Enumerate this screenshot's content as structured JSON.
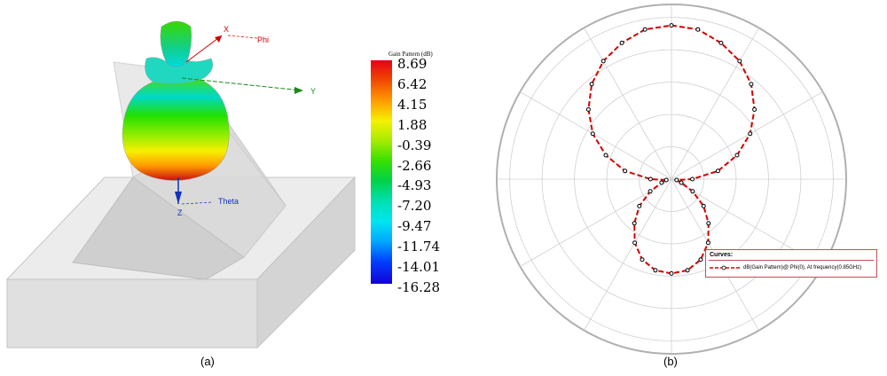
{
  "captions": {
    "left": "(a)",
    "right": "(b)"
  },
  "axes3d": {
    "x": "X",
    "phi": "Phi",
    "y": "Y",
    "z": "Z",
    "theta": "Theta"
  },
  "colorbar": {
    "title": "Gain Pattern (dB)",
    "labels": [
      "8.69",
      "6.42",
      "4.15",
      "1.88",
      "-0.39",
      "-2.66",
      "-4.93",
      "-7.20",
      "-9.47",
      "-11.74",
      "-14.01",
      "-16.28"
    ],
    "range": [
      -16.28,
      8.69
    ]
  },
  "legend": {
    "title": "Curves:",
    "entry": "dB(Gain Pattern)@ Phi(0), At frequency(0.85GHz)"
  },
  "colors": {
    "curve": "#d40000",
    "axis_x": "#d40000",
    "axis_y": "#1a8a1a",
    "axis_z": "#1030c0",
    "grid": "#d0d0d0",
    "outer_ring": "#b0b0b0",
    "legend_border": "#c0504d"
  },
  "chart_data": {
    "type": "polar",
    "series": [
      {
        "name": "dB(Gain Pattern)@ Phi(0), At frequency(0.85GHz)",
        "theta_deg": [
          0,
          10,
          20,
          30,
          40,
          50,
          60,
          70,
          80,
          90,
          100,
          110,
          120,
          130,
          140,
          150,
          160,
          170,
          180,
          190,
          200,
          210,
          220,
          230,
          240,
          250,
          260,
          270,
          280,
          290,
          300,
          310,
          320,
          330,
          340,
          350
        ],
        "r_norm": [
          0.88,
          0.87,
          0.83,
          0.78,
          0.71,
          0.62,
          0.52,
          0.4,
          0.27,
          0.12,
          0.03,
          0.06,
          0.14,
          0.24,
          0.33,
          0.42,
          0.49,
          0.53,
          0.54,
          0.53,
          0.49,
          0.42,
          0.33,
          0.24,
          0.14,
          0.06,
          0.03,
          0.12,
          0.27,
          0.4,
          0.52,
          0.62,
          0.71,
          0.78,
          0.83,
          0.87
        ]
      }
    ],
    "rings": 5,
    "spokes_deg": 30
  }
}
